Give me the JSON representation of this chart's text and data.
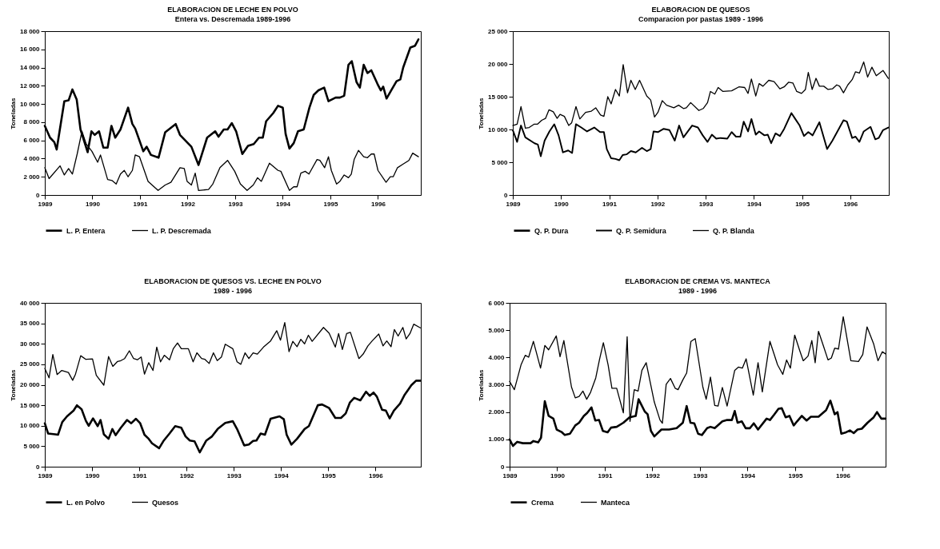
{
  "chart_data": [
    {
      "type": "line",
      "title": "ELABORACION DE LECHE EN POLVO",
      "subtitle": "Entera vs. Descremada 1989-1996",
      "ylabel": "Toneladas",
      "legend": "bottom",
      "xlim": [
        1989,
        1996.9
      ],
      "xticks": [
        1989,
        1990,
        1991,
        1992,
        1993,
        1994,
        1995,
        1996
      ],
      "ylim": [
        0,
        18000
      ],
      "yticks": [
        {
          "value": 0,
          "label": "0"
        },
        {
          "value": 2000,
          "label": "2 000"
        },
        {
          "value": 4000,
          "label": "4 000"
        },
        {
          "value": 6000,
          "label": "6 000"
        },
        {
          "value": 8000,
          "label": "8 000"
        },
        {
          "value": 10000,
          "label": "10 000"
        },
        {
          "value": 12000,
          "label": "12 000"
        },
        {
          "value": 14000,
          "label": "14 000"
        },
        {
          "value": 16000,
          "label": "16 000"
        },
        {
          "value": 18000,
          "label": "18 000"
        }
      ],
      "series": [
        {
          "name": "L. P. Entera",
          "color": "#000000",
          "x": [
            1989.0,
            1989.11,
            1989.2,
            1989.25,
            1989.41,
            1989.5,
            1989.58,
            1989.67,
            1989.75,
            1989.9,
            1989.98,
            1990.05,
            1990.14,
            1990.23,
            1990.32,
            1990.4,
            1990.48,
            1990.59,
            1990.75,
            1990.84,
            1990.9,
            1991.07,
            1991.14,
            1991.23,
            1991.39,
            1991.53,
            1991.75,
            1991.84,
            1992.08,
            1992.23,
            1992.41,
            1992.58,
            1992.65,
            1992.76,
            1992.84,
            1992.93,
            1993.02,
            1993.15,
            1993.27,
            1993.39,
            1993.5,
            1993.58,
            1993.65,
            1993.8,
            1993.9,
            1994.0,
            1994.06,
            1994.14,
            1994.23,
            1994.32,
            1994.44,
            1994.56,
            1994.65,
            1994.75,
            1994.87,
            1994.96,
            1995.11,
            1995.2,
            1995.29,
            1995.38,
            1995.45,
            1995.55,
            1995.62,
            1995.7,
            1995.78,
            1995.86,
            1995.99,
            1996.06,
            1996.11,
            1996.18,
            1996.29,
            1996.39,
            1996.47,
            1996.53,
            1996.68,
            1996.78,
            1996.85
          ],
          "values": [
            7600,
            6300,
            5800,
            5000,
            10300,
            10400,
            11600,
            10500,
            7200,
            4700,
            7000,
            6600,
            7000,
            5200,
            5200,
            7600,
            6300,
            7200,
            9600,
            7800,
            7300,
            4800,
            5300,
            4400,
            4100,
            6900,
            7800,
            6600,
            5300,
            3300,
            6300,
            7000,
            6400,
            7200,
            7200,
            7900,
            7000,
            4500,
            5400,
            5600,
            6300,
            6300,
            8100,
            9000,
            9800,
            9600,
            6700,
            5100,
            5700,
            7000,
            7200,
            9600,
            11000,
            11500,
            11800,
            10300,
            10700,
            10700,
            10900,
            14300,
            14700,
            12400,
            11800,
            14300,
            13400,
            13700,
            12200,
            11500,
            11900,
            10600,
            11600,
            12500,
            12700,
            14000,
            16200,
            16400,
            17100
          ]
        },
        {
          "name": "L. P. Descremada",
          "color": "#000000",
          "x": [
            1989.0,
            1989.09,
            1989.32,
            1989.41,
            1989.5,
            1989.58,
            1989.68,
            1989.78,
            1989.87,
            1989.99,
            1990.11,
            1990.17,
            1990.32,
            1990.41,
            1990.5,
            1990.59,
            1990.67,
            1990.75,
            1990.84,
            1990.9,
            1990.99,
            1991.17,
            1991.38,
            1991.53,
            1991.65,
            1991.84,
            1991.93,
            1991.99,
            1992.08,
            1992.16,
            1992.23,
            1992.44,
            1992.53,
            1992.68,
            1992.84,
            1992.99,
            1993.11,
            1993.25,
            1993.38,
            1993.47,
            1993.55,
            1993.72,
            1993.9,
            1993.96,
            1994.14,
            1994.23,
            1994.3,
            1994.38,
            1994.47,
            1994.55,
            1994.72,
            1994.78,
            1994.88,
            1994.96,
            1995.02,
            1995.13,
            1995.2,
            1995.29,
            1995.38,
            1995.44,
            1995.5,
            1995.59,
            1995.7,
            1995.78,
            1995.86,
            1995.92,
            1996.0,
            1996.17,
            1996.26,
            1996.32,
            1996.41,
            1996.53,
            1996.65,
            1996.73,
            1996.85
          ],
          "values": [
            3000,
            1800,
            3200,
            2200,
            2900,
            2300,
            4500,
            7000,
            5600,
            4800,
            3600,
            4400,
            1700,
            1600,
            1200,
            2300,
            2700,
            2000,
            2700,
            4400,
            4200,
            1500,
            500,
            1100,
            1400,
            3000,
            2900,
            1500,
            1100,
            2400,
            500,
            600,
            1200,
            3000,
            3800,
            2600,
            1200,
            500,
            1100,
            1900,
            1500,
            3500,
            2700,
            2600,
            500,
            900,
            900,
            2400,
            2600,
            2300,
            3900,
            3800,
            3000,
            4200,
            2700,
            1200,
            1500,
            2200,
            1900,
            2300,
            3900,
            4900,
            4200,
            4100,
            4500,
            4500,
            2700,
            1400,
            2000,
            2000,
            3000,
            3400,
            3800,
            4600,
            4200
          ]
        }
      ]
    },
    {
      "type": "line",
      "title": "ELABORACION DE QUESOS",
      "subtitle": "Comparacion por pastas 1989 - 1996",
      "ylabel": "Toneladas",
      "legend": "bottom",
      "xlim": [
        1989,
        1996.8
      ],
      "xticks": [
        1989,
        1990,
        1991,
        1992,
        1993,
        1994,
        1995,
        1996
      ],
      "ylim": [
        0,
        25000
      ],
      "yticks": [
        {
          "value": 0,
          "label": "0"
        },
        {
          "value": 5000,
          "label": "5 000"
        },
        {
          "value": 10000,
          "label": "10 000"
        },
        {
          "value": 15000,
          "label": "15 000"
        },
        {
          "value": 20000,
          "label": "20 000"
        },
        {
          "value": 25000,
          "label": "25 000"
        }
      ],
      "series": [
        {
          "name": "Q. P. Dura",
          "color": "#000000"
        },
        {
          "name": "Q. P. Semidura",
          "color": "#000000",
          "x": [
            1989.0,
            1989.09,
            1989.17,
            1989.26,
            1989.45,
            1989.52,
            1989.58,
            1989.66,
            1989.76,
            1989.86,
            1989.95,
            1990.04,
            1990.15,
            1990.23,
            1990.31,
            1990.42,
            1990.54,
            1990.69,
            1990.81,
            1990.89,
            1990.95,
            1991.04,
            1991.13,
            1991.21,
            1991.28,
            1991.36,
            1991.45,
            1991.55,
            1991.68,
            1991.78,
            1991.86,
            1991.92,
            1992.01,
            1992.13,
            1992.25,
            1992.36,
            1992.45,
            1992.54,
            1992.72,
            1992.84,
            1992.94,
            1993.04,
            1993.13,
            1993.22,
            1993.31,
            1993.45,
            1993.54,
            1993.63,
            1993.72,
            1993.79,
            1993.88,
            1993.95,
            1994.04,
            1994.11,
            1994.22,
            1994.29,
            1994.36,
            1994.45,
            1994.54,
            1994.63,
            1994.78,
            1994.86,
            1994.95,
            1995.04,
            1995.13,
            1995.22,
            1995.36,
            1995.52,
            1995.63,
            1995.75,
            1995.86,
            1995.93,
            1996.04,
            1996.11,
            1996.19,
            1996.28,
            1996.42,
            1996.52,
            1996.59,
            1996.68,
            1996.79
          ],
          "values": [
            9900,
            8100,
            10600,
            8800,
            7900,
            7700,
            5900,
            8300,
            9700,
            10800,
            9100,
            6500,
            6800,
            6400,
            10800,
            10300,
            9700,
            10300,
            9600,
            9600,
            7000,
            5600,
            5500,
            5300,
            6100,
            6200,
            6700,
            6500,
            7200,
            6700,
            7000,
            9700,
            9600,
            10100,
            9900,
            8300,
            10600,
            8800,
            10600,
            10300,
            9100,
            8100,
            9200,
            8600,
            8700,
            8600,
            9600,
            8900,
            8900,
            11200,
            9700,
            11600,
            9200,
            9700,
            9100,
            9200,
            7900,
            9400,
            9000,
            10100,
            12500,
            11600,
            10600,
            9000,
            9600,
            9100,
            11100,
            7000,
            8300,
            9900,
            11400,
            11200,
            8700,
            8900,
            8100,
            9700,
            10400,
            8500,
            8700,
            9900,
            10300
          ]
        },
        {
          "name": "Q. P. Blanda",
          "color": "#000000",
          "x": [
            1989.0,
            1989.09,
            1989.17,
            1989.26,
            1989.34,
            1989.44,
            1989.51,
            1989.6,
            1989.68,
            1989.75,
            1989.84,
            1989.92,
            1989.98,
            1990.07,
            1990.16,
            1990.22,
            1990.31,
            1990.39,
            1990.51,
            1990.63,
            1990.72,
            1990.82,
            1990.89,
            1990.97,
            1991.04,
            1991.13,
            1991.21,
            1991.29,
            1991.38,
            1991.45,
            1991.54,
            1991.63,
            1991.78,
            1991.86,
            1991.94,
            1992.01,
            1992.1,
            1992.19,
            1992.34,
            1992.44,
            1992.54,
            1992.6,
            1992.69,
            1992.86,
            1992.95,
            1993.04,
            1993.1,
            1993.19,
            1993.26,
            1993.36,
            1993.54,
            1993.69,
            1993.81,
            1993.88,
            1993.95,
            1994.04,
            1994.11,
            1994.19,
            1994.31,
            1994.42,
            1994.54,
            1994.63,
            1994.72,
            1994.81,
            1994.89,
            1994.99,
            1995.07,
            1995.13,
            1995.21,
            1995.29,
            1995.36,
            1995.45,
            1995.54,
            1995.63,
            1995.72,
            1995.78,
            1995.86,
            1995.95,
            1996.04,
            1996.11,
            1996.19,
            1996.28,
            1996.36,
            1996.45,
            1996.54,
            1996.68,
            1996.79
          ],
          "values": [
            10600,
            10800,
            13500,
            10200,
            10300,
            10800,
            10800,
            11400,
            11700,
            13000,
            12700,
            11700,
            12300,
            12000,
            10600,
            11000,
            13500,
            11600,
            12600,
            12800,
            13300,
            12200,
            12000,
            15000,
            13900,
            16100,
            15100,
            19900,
            15600,
            17500,
            16100,
            17500,
            15100,
            14500,
            11900,
            12600,
            14400,
            13700,
            13300,
            13700,
            13200,
            13300,
            14100,
            12900,
            13200,
            14100,
            15800,
            15400,
            16400,
            15800,
            15900,
            16500,
            16400,
            15500,
            17700,
            15100,
            17000,
            16600,
            17500,
            17300,
            16200,
            16500,
            17200,
            17100,
            15800,
            15500,
            16100,
            18700,
            16100,
            17800,
            16600,
            16600,
            16100,
            16200,
            16800,
            16600,
            15600,
            16800,
            17600,
            18800,
            18600,
            20300,
            18000,
            19500,
            18200,
            19000,
            17800
          ]
        }
      ]
    },
    {
      "type": "line",
      "title": "ELABORACION DE QUESOS VS. LECHE EN POLVO",
      "subtitle": "1989 - 1996",
      "ylabel": "Toneladas",
      "legend": "bottom",
      "xlim": [
        1989,
        1996.96
      ],
      "xticks": [
        1989,
        1990,
        1991,
        1992,
        1993,
        1994,
        1995,
        1996
      ],
      "ylim": [
        0,
        40000
      ],
      "yticks": [
        {
          "value": 0,
          "label": "0"
        },
        {
          "value": 5000,
          "label": "5 000"
        },
        {
          "value": 10000,
          "label": "10 000"
        },
        {
          "value": 15000,
          "label": "15 000"
        },
        {
          "value": 20000,
          "label": "20 000"
        },
        {
          "value": 25000,
          "label": "25 000"
        },
        {
          "value": 30000,
          "label": "30 000"
        },
        {
          "value": 35000,
          "label": "35 000"
        },
        {
          "value": 40000,
          "label": "40 000"
        }
      ],
      "series": [
        {
          "name": "L. en Polvo",
          "color": "#000000",
          "x": [
            1989.0,
            1989.07,
            1989.22,
            1989.28,
            1989.37,
            1989.47,
            1989.61,
            1989.68,
            1989.78,
            1989.87,
            1989.93,
            1990.02,
            1990.12,
            1990.18,
            1990.25,
            1990.35,
            1990.43,
            1990.5,
            1990.61,
            1990.74,
            1990.83,
            1990.93,
            1991.02,
            1991.11,
            1991.2,
            1991.27,
            1991.42,
            1991.52,
            1991.64,
            1991.76,
            1991.89,
            1991.98,
            1992.07,
            1992.17,
            1992.28,
            1992.42,
            1992.54,
            1992.66,
            1992.82,
            1992.98,
            1993.07,
            1993.22,
            1993.32,
            1993.41,
            1993.48,
            1993.57,
            1993.66,
            1993.78,
            1993.97,
            1994.06,
            1994.12,
            1994.22,
            1994.34,
            1994.5,
            1994.59,
            1994.78,
            1994.87,
            1995.02,
            1995.15,
            1995.27,
            1995.37,
            1995.46,
            1995.55,
            1995.68,
            1995.8,
            1995.88,
            1995.96,
            1996.03,
            1996.14,
            1996.22,
            1996.3,
            1996.39,
            1996.52,
            1996.61,
            1996.76,
            1996.86,
            1996.95
          ],
          "values": [
            10600,
            8100,
            7900,
            7800,
            10900,
            12300,
            13700,
            15000,
            14000,
            11200,
            10000,
            11800,
            9900,
            11400,
            7900,
            6800,
            9200,
            7700,
            9500,
            11400,
            10600,
            11700,
            10600,
            7800,
            6800,
            5700,
            4500,
            6400,
            8100,
            9900,
            9500,
            7400,
            6400,
            6200,
            3500,
            6400,
            7400,
            9200,
            10700,
            11100,
            9200,
            5200,
            5400,
            6300,
            6400,
            8100,
            7800,
            11700,
            12300,
            11600,
            7800,
            5400,
            6800,
            9200,
            9900,
            15000,
            15200,
            14300,
            11900,
            11900,
            13000,
            15700,
            16800,
            16200,
            18300,
            17300,
            18100,
            17100,
            13900,
            13700,
            11800,
            13700,
            15400,
            17400,
            19900,
            21000,
            21000
          ]
        },
        {
          "name": "Quesos",
          "color": "#000000",
          "x": [
            1989.0,
            1989.09,
            1989.17,
            1989.26,
            1989.36,
            1989.5,
            1989.59,
            1989.65,
            1989.76,
            1989.87,
            1990.01,
            1990.09,
            1990.25,
            1990.35,
            1990.44,
            1990.54,
            1990.61,
            1990.69,
            1990.79,
            1990.88,
            1990.96,
            1991.04,
            1991.11,
            1991.2,
            1991.29,
            1991.37,
            1991.45,
            1991.53,
            1991.64,
            1991.72,
            1991.81,
            1991.89,
            1992.04,
            1992.14,
            1992.22,
            1992.32,
            1992.39,
            1992.48,
            1992.57,
            1992.65,
            1992.74,
            1992.82,
            1992.98,
            1993.07,
            1993.15,
            1993.24,
            1993.32,
            1993.41,
            1993.5,
            1993.63,
            1993.78,
            1993.91,
            1993.99,
            1994.08,
            1994.17,
            1994.25,
            1994.34,
            1994.42,
            1994.5,
            1994.58,
            1994.66,
            1994.9,
            1995.02,
            1995.15,
            1995.22,
            1995.3,
            1995.39,
            1995.47,
            1995.65,
            1995.74,
            1995.84,
            1995.93,
            1996.07,
            1996.16,
            1996.24,
            1996.33,
            1996.4,
            1996.48,
            1996.58,
            1996.65,
            1996.73,
            1996.81,
            1996.95
          ],
          "values": [
            24000,
            21700,
            27400,
            22500,
            23500,
            23000,
            21100,
            22600,
            27100,
            26200,
            26300,
            22300,
            19900,
            26900,
            24500,
            25700,
            25900,
            26400,
            28300,
            26400,
            26100,
            26800,
            22600,
            25400,
            23500,
            29200,
            25600,
            27200,
            26100,
            28800,
            30200,
            28800,
            28800,
            25600,
            27800,
            26400,
            26200,
            25200,
            27800,
            25900,
            26800,
            29900,
            28800,
            25600,
            25000,
            27800,
            26400,
            27800,
            27500,
            29200,
            30700,
            33200,
            30900,
            35200,
            28100,
            30600,
            29300,
            31100,
            30000,
            32100,
            30600,
            34000,
            32600,
            29200,
            32500,
            28600,
            32500,
            32800,
            26400,
            27500,
            29500,
            30700,
            32400,
            29500,
            30700,
            29300,
            33500,
            31900,
            34000,
            31200,
            32500,
            34800,
            33900
          ]
        }
      ]
    },
    {
      "type": "line",
      "title": "ELABORACION DE CREMA VS. MANTECA",
      "subtitle": "1989 - 1996",
      "ylabel": "Toneladas",
      "legend": "bottom",
      "xlim": [
        1989,
        1996.9
      ],
      "xticks": [
        1989,
        1990,
        1991,
        1992,
        1993,
        1994,
        1995,
        1996
      ],
      "ylim": [
        0,
        6000
      ],
      "yticks": [
        {
          "value": 0,
          "label": "0"
        },
        {
          "value": 1000,
          "label": "1.000"
        },
        {
          "value": 2000,
          "label": "2.000"
        },
        {
          "value": 3000,
          "label": "3.000"
        },
        {
          "value": 4000,
          "label": "4.000"
        },
        {
          "value": 5000,
          "label": "5.000"
        },
        {
          "value": 6000,
          "label": "6 000"
        }
      ],
      "series": [
        {
          "name": "Crema",
          "color": "#000000",
          "x": [
            1989.0,
            1989.07,
            1989.16,
            1989.28,
            1989.44,
            1989.5,
            1989.6,
            1989.66,
            1989.74,
            1989.82,
            1989.92,
            1989.99,
            1990.1,
            1990.16,
            1990.27,
            1990.38,
            1990.46,
            1990.56,
            1990.63,
            1990.72,
            1990.8,
            1990.88,
            1990.96,
            1991.06,
            1991.13,
            1991.25,
            1991.39,
            1991.52,
            1991.65,
            1991.71,
            1991.84,
            1991.9,
            1991.97,
            1992.04,
            1992.19,
            1992.35,
            1992.51,
            1992.64,
            1992.72,
            1992.8,
            1992.88,
            1992.96,
            1993.04,
            1993.15,
            1993.22,
            1993.31,
            1993.47,
            1993.57,
            1993.67,
            1993.73,
            1993.79,
            1993.88,
            1993.96,
            1994.05,
            1994.13,
            1994.22,
            1994.4,
            1994.47,
            1994.56,
            1994.65,
            1994.72,
            1994.8,
            1994.88,
            1994.97,
            1995.04,
            1995.14,
            1995.24,
            1995.33,
            1995.49,
            1995.65,
            1995.74,
            1995.83,
            1995.89,
            1995.97,
            1996.07,
            1996.15,
            1996.23,
            1996.31,
            1996.4,
            1996.52,
            1996.65,
            1996.72,
            1996.81,
            1996.9
          ],
          "values": [
            1000,
            760,
            910,
            860,
            860,
            940,
            890,
            1060,
            2400,
            1860,
            1760,
            1360,
            1260,
            1160,
            1210,
            1510,
            1610,
            1860,
            1970,
            2170,
            1690,
            1710,
            1310,
            1260,
            1430,
            1460,
            1610,
            1810,
            1860,
            2470,
            2020,
            1920,
            1310,
            1110,
            1360,
            1360,
            1410,
            1610,
            2220,
            1610,
            1590,
            1210,
            1160,
            1410,
            1460,
            1410,
            1660,
            1710,
            1710,
            2040,
            1610,
            1660,
            1410,
            1410,
            1590,
            1360,
            1760,
            1710,
            1910,
            2120,
            2140,
            1810,
            1860,
            1510,
            1660,
            1860,
            1690,
            1830,
            1830,
            2070,
            2420,
            1920,
            2000,
            1210,
            1260,
            1330,
            1230,
            1360,
            1390,
            1610,
            1810,
            2000,
            1760,
            1760
          ]
        },
        {
          "name": "Manteca",
          "color": "#000000",
          "x": [
            1989.0,
            1989.1,
            1989.24,
            1989.33,
            1989.4,
            1989.5,
            1989.65,
            1989.74,
            1989.82,
            1989.98,
            1990.06,
            1990.14,
            1990.3,
            1990.38,
            1990.46,
            1990.54,
            1990.62,
            1990.7,
            1990.81,
            1990.89,
            1990.97,
            1991.07,
            1991.15,
            1991.25,
            1991.39,
            1991.47,
            1991.53,
            1991.62,
            1991.7,
            1991.78,
            1991.87,
            1992.04,
            1992.16,
            1992.21,
            1992.29,
            1992.38,
            1992.48,
            1992.54,
            1992.64,
            1992.72,
            1992.81,
            1992.9,
            1993.06,
            1993.13,
            1993.22,
            1993.31,
            1993.38,
            1993.47,
            1993.57,
            1993.73,
            1993.81,
            1993.89,
            1993.97,
            1994.12,
            1994.22,
            1994.31,
            1994.47,
            1994.63,
            1994.74,
            1994.82,
            1994.9,
            1994.99,
            1995.1,
            1995.17,
            1995.27,
            1995.35,
            1995.42,
            1995.49,
            1995.59,
            1995.69,
            1995.76,
            1995.83,
            1995.91,
            1996.01,
            1996.17,
            1996.33,
            1996.42,
            1996.51,
            1996.65,
            1996.74,
            1996.83,
            1996.9
          ],
          "values": [
            3120,
            2820,
            3730,
            4080,
            4010,
            4590,
            3610,
            4440,
            4280,
            4790,
            4030,
            4620,
            2920,
            2520,
            2570,
            2770,
            2470,
            2720,
            3250,
            3930,
            4540,
            3730,
            2870,
            2870,
            1970,
            4760,
            1660,
            2820,
            2770,
            3530,
            3810,
            2370,
            1710,
            1590,
            3020,
            3230,
            2870,
            2820,
            3180,
            3430,
            4590,
            4690,
            2920,
            2470,
            3280,
            2240,
            2220,
            2900,
            2220,
            3530,
            3650,
            3610,
            3950,
            2620,
            3810,
            2740,
            4590,
            3730,
            3380,
            3910,
            3610,
            4820,
            4230,
            3880,
            4050,
            4620,
            3810,
            4960,
            4440,
            3910,
            3980,
            4340,
            4310,
            5490,
            3880,
            3850,
            4110,
            5120,
            4490,
            3880,
            4210,
            4130
          ]
        }
      ]
    }
  ]
}
